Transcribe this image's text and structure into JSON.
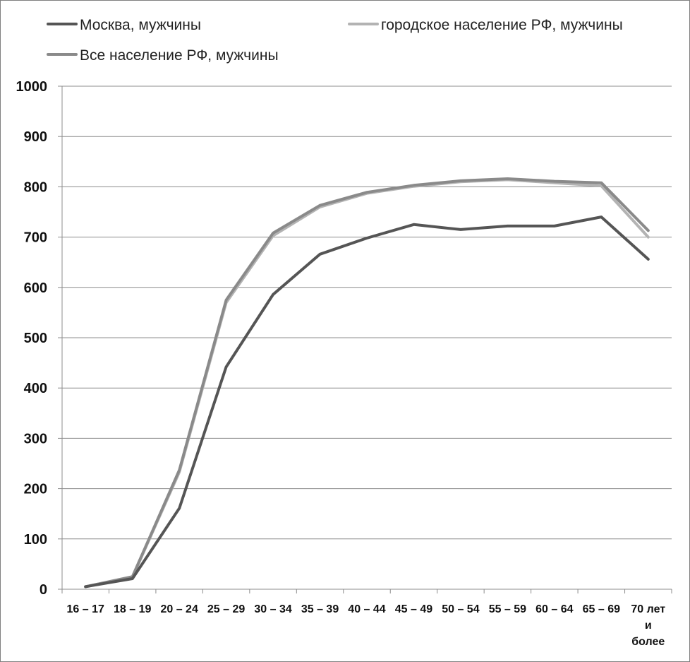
{
  "chart_data": {
    "type": "line",
    "title": "",
    "xlabel": "",
    "ylabel": "",
    "ylim": [
      0,
      1000
    ],
    "yticks": [
      0,
      100,
      200,
      300,
      400,
      500,
      600,
      700,
      800,
      900,
      1000
    ],
    "grid": "horizontal",
    "legend_position": "top",
    "categories": [
      [
        "16 – 17"
      ],
      [
        "18 – 19"
      ],
      [
        "20 – 24"
      ],
      [
        "25 – 29"
      ],
      [
        "30 – 34"
      ],
      [
        "35 – 39"
      ],
      [
        "40 – 44"
      ],
      [
        "45 – 49"
      ],
      [
        "50 – 54"
      ],
      [
        "55 – 59"
      ],
      [
        "60 – 64"
      ],
      [
        "65 – 69"
      ],
      [
        "70 лет",
        "и",
        "более"
      ]
    ],
    "series": [
      {
        "name": "Москва, мужчины",
        "color": "#555555",
        "values": [
          5,
          21,
          161,
          442,
          586,
          666,
          698,
          725,
          715,
          722,
          722,
          740,
          656
        ]
      },
      {
        "name": "городское население РФ, мужчины",
        "color": "#b3b3b3",
        "values": [
          5,
          24,
          233,
          570,
          703,
          760,
          787,
          801,
          810,
          814,
          808,
          802,
          700
        ]
      },
      {
        "name": "Все население РФ, мужчины",
        "color": "#8a8a8a",
        "values": [
          5,
          25,
          237,
          575,
          708,
          763,
          789,
          803,
          812,
          816,
          811,
          808,
          713
        ]
      }
    ]
  }
}
